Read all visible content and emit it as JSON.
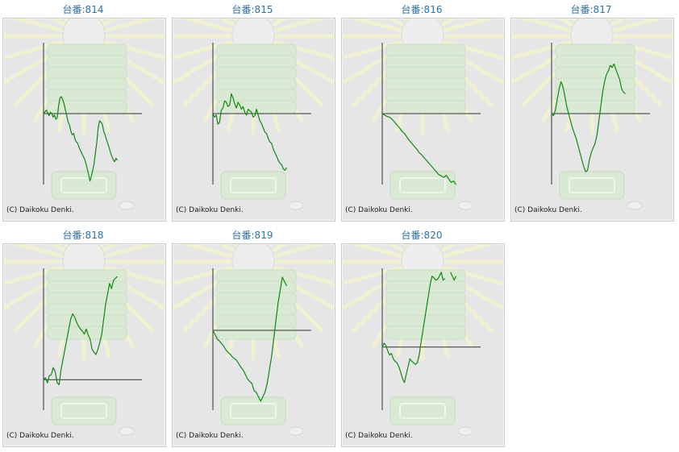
{
  "title_prefix": "台番:",
  "copyright": "(C) Daikoku Denki.",
  "colors": {
    "line": "#118811",
    "axis": "#333333",
    "title": "#2a72a8",
    "panel_bg": "#e6e6e6"
  },
  "chart_data": [
    {
      "type": "line",
      "title": "814",
      "ylim": [
        -1,
        1
      ],
      "values": [
        0.0,
        0.02,
        0.05,
        0.01,
        -0.03,
        0.02,
        0.0,
        -0.05,
        -0.02,
        -0.08,
        -0.06,
        0.1,
        0.22,
        0.24,
        0.2,
        0.14,
        0.05,
        -0.03,
        -0.12,
        -0.16,
        -0.25,
        -0.3,
        -0.28,
        -0.36,
        -0.4,
        -0.42,
        -0.48,
        -0.52,
        -0.56,
        -0.6,
        -0.64,
        -0.7,
        -0.78,
        -0.86,
        -0.95,
        -0.88,
        -0.8,
        -0.7,
        -0.55,
        -0.4,
        -0.2,
        -0.1,
        -0.12,
        -0.15,
        -0.25,
        -0.3,
        -0.36,
        -0.42,
        -0.48,
        -0.55,
        -0.6,
        -0.65,
        -0.68,
        -0.63,
        -0.66
      ]
    },
    {
      "type": "line",
      "title": "815",
      "ylim": [
        -1,
        1
      ],
      "values": [
        0.0,
        -0.05,
        -0.02,
        -0.15,
        -0.12,
        0.05,
        0.08,
        0.18,
        0.16,
        0.1,
        0.12,
        0.28,
        0.22,
        0.14,
        0.08,
        0.16,
        0.12,
        0.06,
        0.1,
        0.02,
        -0.02,
        0.06,
        0.04,
        0.02,
        -0.05,
        -0.03,
        0.06,
        -0.02,
        -0.1,
        -0.14,
        -0.2,
        -0.26,
        -0.28,
        -0.35,
        -0.4,
        -0.42,
        -0.5,
        -0.55,
        -0.6,
        -0.66,
        -0.7,
        -0.72,
        -0.78,
        -0.8,
        -0.76
      ]
    },
    {
      "type": "line",
      "title": "816",
      "ylim": [
        -1,
        1
      ],
      "values": [
        0.0,
        -0.02,
        -0.04,
        -0.05,
        -0.08,
        -0.12,
        -0.16,
        -0.2,
        -0.25,
        -0.28,
        -0.33,
        -0.38,
        -0.42,
        -0.46,
        -0.5,
        -0.55,
        -0.58,
        -0.62,
        -0.66,
        -0.7,
        -0.74,
        -0.78,
        -0.82,
        -0.86,
        -0.88,
        -0.9,
        -0.87,
        -0.92,
        -0.97,
        -0.95,
        -1.0
      ]
    },
    {
      "type": "line",
      "title": "817",
      "ylim": [
        -1,
        1
      ],
      "values": [
        0.0,
        -0.03,
        0.05,
        0.2,
        0.35,
        0.45,
        0.38,
        0.25,
        0.1,
        0.0,
        -0.1,
        -0.2,
        -0.28,
        -0.35,
        -0.45,
        -0.55,
        -0.65,
        -0.75,
        -0.82,
        -0.8,
        -0.65,
        -0.55,
        -0.48,
        -0.42,
        -0.3,
        -0.1,
        0.1,
        0.3,
        0.45,
        0.55,
        0.6,
        0.68,
        0.65,
        0.7,
        0.62,
        0.55,
        0.48,
        0.35,
        0.3,
        0.28
      ]
    },
    {
      "type": "line",
      "title": "818",
      "ylim": [
        -0.3,
        1.1
      ],
      "values": [
        0.0,
        0.02,
        -0.03,
        0.04,
        0.05,
        0.12,
        0.08,
        -0.03,
        -0.05,
        0.1,
        0.2,
        0.3,
        0.4,
        0.5,
        0.6,
        0.65,
        0.62,
        0.57,
        0.53,
        0.5,
        0.48,
        0.45,
        0.5,
        0.44,
        0.4,
        0.3,
        0.27,
        0.25,
        0.3,
        0.37,
        0.45,
        0.6,
        0.75,
        0.85,
        0.95,
        0.9,
        0.98,
        1.0,
        1.02
      ]
    },
    {
      "type": "line",
      "title": "819",
      "ylim": [
        -0.9,
        0.7
      ],
      "values": [
        0.0,
        -0.05,
        -0.1,
        -0.12,
        -0.15,
        -0.18,
        -0.22,
        -0.25,
        -0.27,
        -0.3,
        -0.32,
        -0.34,
        -0.38,
        -0.42,
        -0.45,
        -0.5,
        -0.55,
        -0.58,
        -0.6,
        -0.68,
        -0.7,
        -0.75,
        -0.8,
        -0.75,
        -0.7,
        -0.6,
        -0.45,
        -0.3,
        -0.1,
        0.1,
        0.3,
        0.45,
        0.6,
        0.55,
        0.5
      ]
    },
    {
      "type": "line",
      "title": "820",
      "ylim": [
        -0.8,
        1.0
      ],
      "values": [
        0.0,
        0.05,
        0.02,
        -0.05,
        -0.1,
        -0.08,
        -0.15,
        -0.18,
        -0.2,
        -0.25,
        -0.32,
        -0.4,
        -0.45,
        -0.35,
        -0.25,
        -0.15,
        -0.18,
        -0.2,
        -0.22,
        -0.2,
        -0.1,
        0.05,
        0.2,
        0.35,
        0.5,
        0.65,
        0.8,
        0.9,
        0.88,
        0.85,
        0.86,
        0.9,
        0.95,
        0.85,
        0.87,
        null,
        null,
        0.95,
        0.9,
        0.85,
        0.9
      ]
    }
  ]
}
